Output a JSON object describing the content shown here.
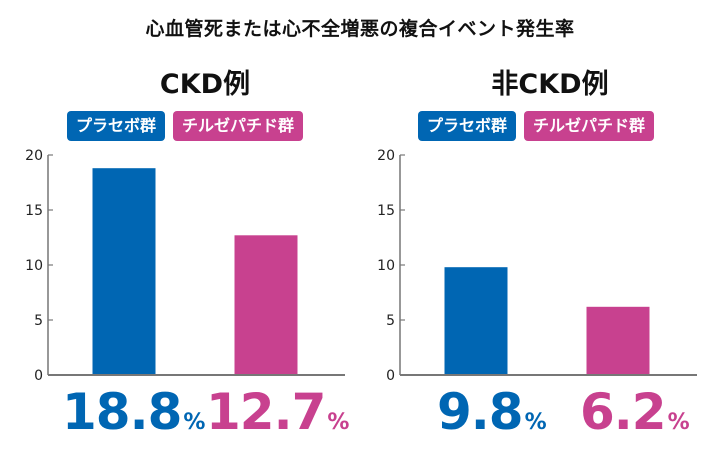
{
  "title": "心血管死または心不全増悪の複合イベント発生率",
  "colors": {
    "placebo": "#0066b3",
    "tirzepatide": "#c8418f",
    "axis": "#777777"
  },
  "legend": {
    "placebo": "プラセボ群",
    "tirzepatide": "チルゼパチド群"
  },
  "chart_data": [
    {
      "type": "bar",
      "title": "CKD例",
      "categories": [
        "プラセボ群",
        "チルゼパチド群"
      ],
      "values": [
        18.8,
        12.7
      ],
      "value_labels": [
        "18.8",
        "12.7"
      ],
      "unit": "%",
      "ylim": [
        0,
        20
      ],
      "yticks": [
        "0",
        "5",
        "10",
        "15",
        "20"
      ],
      "grid": false,
      "legend_position": "top"
    },
    {
      "type": "bar",
      "title": "非CKD例",
      "categories": [
        "プラセボ群",
        "チルゼパチド群"
      ],
      "values": [
        9.8,
        6.2
      ],
      "value_labels": [
        "9.8",
        "6.2"
      ],
      "unit": "%",
      "ylim": [
        0,
        20
      ],
      "yticks": [
        "0",
        "5",
        "10",
        "15",
        "20"
      ],
      "grid": false,
      "legend_position": "top"
    }
  ]
}
